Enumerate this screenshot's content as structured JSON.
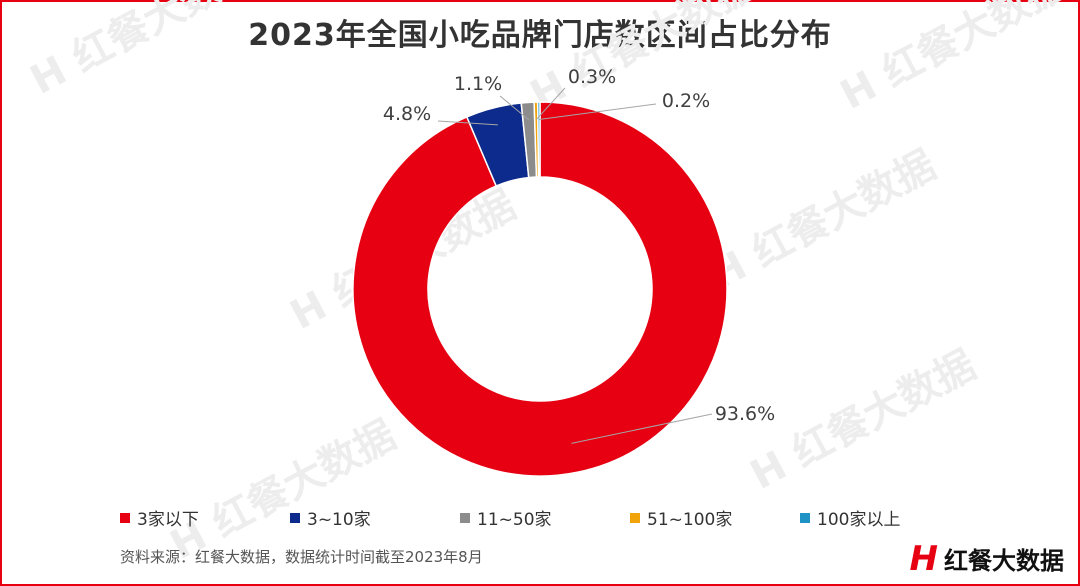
{
  "title": "2023年全国小吃品牌门店数区间占比分布",
  "source_note": "资料来源：红餐大数据，数据统计时间截至2023年8月",
  "brand": {
    "mark": "H",
    "name": "红餐大数据"
  },
  "watermark": {
    "text": "红餐大数据",
    "mark": "H"
  },
  "colors": {
    "frame": "#e60012",
    "text": "#333333"
  },
  "chart_data": {
    "type": "pie",
    "variant": "donut",
    "categories": [
      "3家以下",
      "3~10家",
      "11~50家",
      "51~100家",
      "100家以上"
    ],
    "values": [
      93.6,
      4.8,
      1.1,
      0.3,
      0.2
    ],
    "labels": [
      "93.6%",
      "4.8%",
      "1.1%",
      "0.3%",
      "0.2%"
    ],
    "colors": [
      "#e60012",
      "#0c2b8c",
      "#8c8c8c",
      "#f0a30a",
      "#1f93c6"
    ],
    "legend_position": "bottom"
  }
}
